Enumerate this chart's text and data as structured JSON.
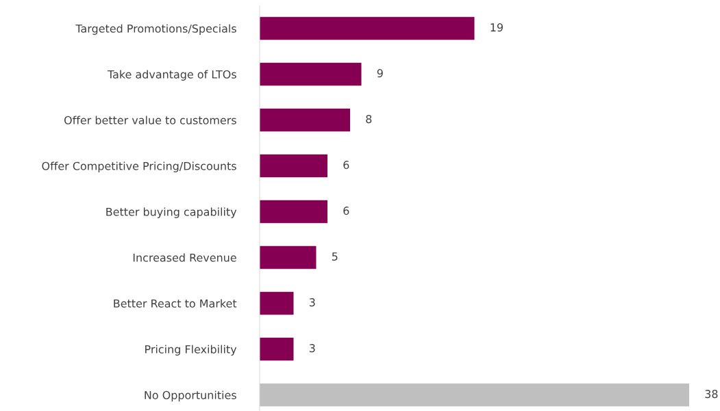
{
  "chart_data": {
    "type": "bar",
    "orientation": "horizontal",
    "categories": [
      "Targeted Promotions/Specials",
      "Take advantage of LTOs",
      "Offer better value to customers",
      "Offer Competitive Pricing/Discounts",
      "Better buying capability",
      "Increased Revenue",
      "Better React to Market",
      "Pricing Flexibility",
      "No Opportunities"
    ],
    "values": [
      19,
      9,
      8,
      6,
      6,
      5,
      3,
      3,
      38
    ],
    "colors": [
      "#850052",
      "#850052",
      "#850052",
      "#850052",
      "#850052",
      "#850052",
      "#850052",
      "#850052",
      "#bfbfbf"
    ],
    "data_labels": true,
    "tick_labels": "y",
    "grid": false,
    "legend": false
  }
}
